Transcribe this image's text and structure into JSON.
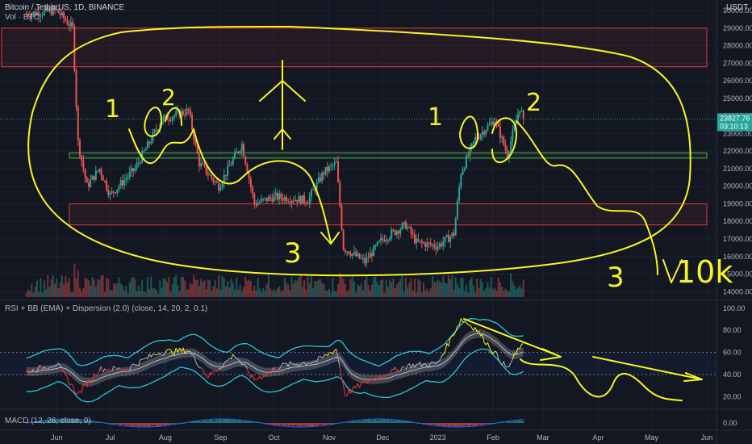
{
  "header": {
    "symbol": "Bitcoin / TetherUS, 1D, BINANCE",
    "volume_label": "Vol · BTC",
    "rsi_label": "RSI + BB (EMA) + Dispersion (2.0) (close, 14, 20, 2, 0.1)",
    "macd_label": "MACD (12, 26, close, 9)",
    "currency": "USDT"
  },
  "colors": {
    "background": "#131722",
    "grid": "#1e222d",
    "up": "#26a69a",
    "down": "#ef5350",
    "drawing": "#f7f422",
    "box_red": "#e23b3b",
    "box_green": "#4caf50",
    "rsi_band": "#26c6da",
    "price_tag": "#26a69a"
  },
  "price_tags": {
    "last": "23827.76",
    "countdown": "03:10:13"
  },
  "annotations": {
    "n1_left": "1",
    "n2_left": "2",
    "n3_left": "3",
    "n1_right": "1",
    "n2_right": "2",
    "n3_right": "3",
    "target": "10k"
  },
  "chart_data": [
    {
      "type": "candlestick",
      "title": "Bitcoin / TetherUS, 1D, BINANCE",
      "yaxis_side": "right",
      "y_ticks": [
        "14000.00",
        "15000.00",
        "16000.00",
        "17000.00",
        "18000.00",
        "19000.00",
        "20000.00",
        "21000.00",
        "22000.00",
        "23000.00",
        "24000.00",
        "25000.00",
        "26000.00",
        "27000.00",
        "28000.00",
        "29000.00",
        "30000.00"
      ],
      "y_range": [
        13600,
        30600
      ],
      "x_ticks": [
        "Jun",
        "Jul",
        "Aug",
        "Sep",
        "Oct",
        "Nov",
        "Dec",
        "2023",
        "Feb",
        "Mar",
        "Apr",
        "May",
        "Jun"
      ],
      "grid": true,
      "zones": [
        {
          "color": "red",
          "from": 26800,
          "to": 29000
        },
        {
          "color": "green",
          "from": 21600,
          "to": 21900
        },
        {
          "color": "red",
          "from": 17800,
          "to": 19000
        }
      ],
      "close_path": [
        [
          "2022-05-15",
          29800
        ],
        [
          "2022-06-01",
          30000
        ],
        [
          "2022-06-10",
          29000
        ],
        [
          "2022-06-13",
          22500
        ],
        [
          "2022-06-18",
          20000
        ],
        [
          "2022-06-25",
          21000
        ],
        [
          "2022-07-01",
          19500
        ],
        [
          "2022-07-15",
          21000
        ],
        [
          "2022-07-30",
          23800
        ],
        [
          "2022-08-14",
          24300
        ],
        [
          "2022-08-20",
          21300
        ],
        [
          "2022-08-31",
          20000
        ],
        [
          "2022-09-09",
          21700
        ],
        [
          "2022-09-13",
          22400
        ],
        [
          "2022-09-20",
          19000
        ],
        [
          "2022-10-01",
          19400
        ],
        [
          "2022-10-20",
          19200
        ],
        [
          "2022-10-29",
          20800
        ],
        [
          "2022-11-05",
          21300
        ],
        [
          "2022-11-09",
          16500
        ],
        [
          "2022-11-21",
          15700
        ],
        [
          "2022-12-01",
          17000
        ],
        [
          "2022-12-14",
          17800
        ],
        [
          "2022-12-20",
          16800
        ],
        [
          "2023-01-01",
          16600
        ],
        [
          "2023-01-10",
          17300
        ],
        [
          "2023-01-14",
          20800
        ],
        [
          "2023-01-22",
          22700
        ],
        [
          "2023-02-02",
          23800
        ],
        [
          "2023-02-09",
          21800
        ],
        [
          "2023-02-16",
          24500
        ],
        [
          "2023-02-18",
          23827.76
        ]
      ],
      "last_price": 23827.76
    },
    {
      "type": "bar",
      "title": "Vol · BTC",
      "note": "daily volume histogram"
    },
    {
      "type": "line",
      "title": "RSI + BB (EMA) + Dispersion (2.0) (close, 14, 20, 2, 0.1)",
      "y_ticks": [
        "20.00",
        "40.00",
        "60.00",
        "80.00",
        "100.00"
      ],
      "y_range": [
        10,
        105
      ],
      "levels": [
        40,
        60
      ],
      "rsi_path": [
        [
          "2022-05-15",
          42
        ],
        [
          "2022-06-01",
          50
        ],
        [
          "2022-06-13",
          22
        ],
        [
          "2022-06-25",
          45
        ],
        [
          "2022-07-10",
          45
        ],
        [
          "2022-07-28",
          60
        ],
        [
          "2022-08-14",
          62
        ],
        [
          "2022-08-25",
          38
        ],
        [
          "2022-09-09",
          58
        ],
        [
          "2022-09-20",
          35
        ],
        [
          "2022-10-05",
          48
        ],
        [
          "2022-10-25",
          52
        ],
        [
          "2022-11-05",
          63
        ],
        [
          "2022-11-10",
          22
        ],
        [
          "2022-11-21",
          33
        ],
        [
          "2022-12-15",
          48
        ],
        [
          "2023-01-01",
          50
        ],
        [
          "2023-01-14",
          90
        ],
        [
          "2023-01-22",
          82
        ],
        [
          "2023-02-09",
          45
        ],
        [
          "2023-02-16",
          65
        ]
      ]
    },
    {
      "type": "bar",
      "title": "MACD (12, 26, close, 9)",
      "y_ticks": [
        "0.00"
      ]
    }
  ]
}
